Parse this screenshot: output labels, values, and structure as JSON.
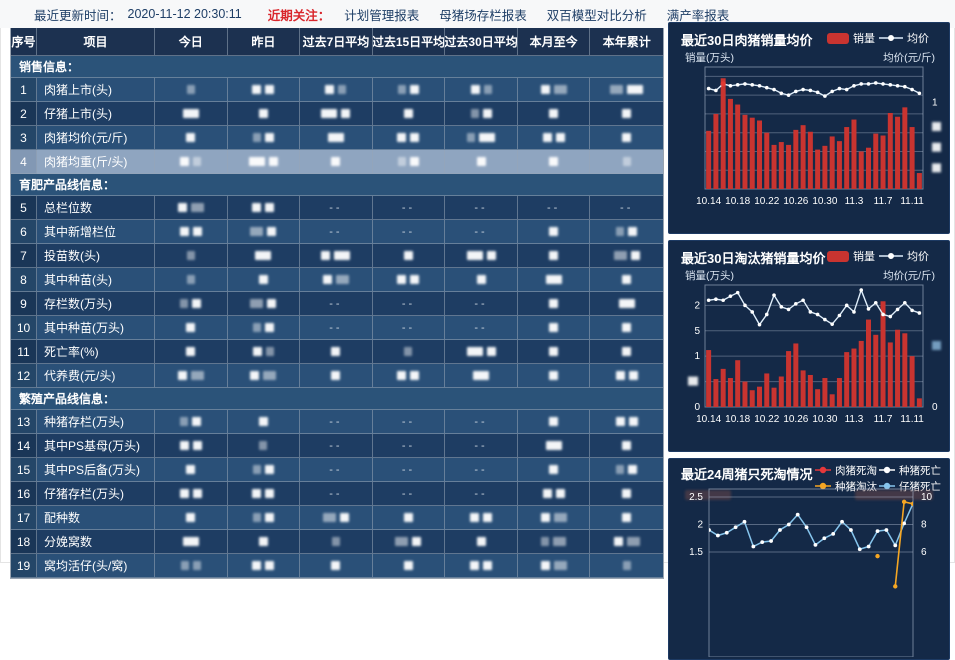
{
  "topbar": {
    "updated_label": "最近更新时间：",
    "updated_value": "2020-11-12 20:30:11",
    "focus_label": "近期关注：",
    "links": [
      "计划管理报表",
      "母猪场存栏报表",
      "双百模型对比分析",
      "满产率报表"
    ]
  },
  "table": {
    "headers": [
      "序号",
      "项目",
      "今日",
      "昨日",
      "过去7日平均",
      "过去15日平均",
      "过去30日平均",
      "本月至今",
      "本年累计"
    ],
    "masked_note": "--",
    "rows": [
      {
        "section": "销售信息："
      },
      {
        "no": "1",
        "name": "肉猪上市(头)",
        "cells": [
          "g",
          "ss",
          "sg",
          "gs",
          "sg",
          "sG",
          "Gw"
        ]
      },
      {
        "no": "2",
        "name": "仔猪上市(头)",
        "cells": [
          "w",
          "s",
          "ws",
          "s",
          "gs",
          "s",
          "s"
        ]
      },
      {
        "no": "3",
        "name": "肉猪均价(元/斤)",
        "cells": [
          "s",
          "gs",
          "w",
          "ss",
          "gw",
          "ss",
          "s"
        ]
      },
      {
        "no": "4",
        "name": "肉猪均重(斤/头)",
        "selected": true,
        "cells": [
          "sg",
          "ws",
          "s",
          "gs",
          "s",
          "s",
          "g"
        ]
      },
      {
        "section": "育肥产品线信息："
      },
      {
        "no": "5",
        "name": "总栏位数",
        "cells": [
          "sG",
          "ss",
          "--",
          "--",
          "--",
          "--",
          "--"
        ]
      },
      {
        "no": "6",
        "name": "其中新增栏位",
        "cells": [
          "ss",
          "Gs",
          "--",
          "--",
          "--",
          "s",
          "gs"
        ]
      },
      {
        "no": "7",
        "name": "投苗数(头)",
        "cells": [
          "g",
          "w",
          "sw",
          "s",
          "ws",
          "s",
          "Gs"
        ]
      },
      {
        "no": "8",
        "name": "其中种苗(头)",
        "cells": [
          "g",
          "s",
          "sG",
          "ss",
          "s",
          "w",
          "s"
        ]
      },
      {
        "no": "9",
        "name": "存栏数(万头)",
        "cells": [
          "gs",
          "Gs",
          "--",
          "--",
          "--",
          "s",
          "w"
        ]
      },
      {
        "no": "10",
        "name": "其中种苗(万头)",
        "cells": [
          "s",
          "gs",
          "--",
          "--",
          "--",
          "s",
          "s"
        ]
      },
      {
        "no": "11",
        "name": "死亡率(%)",
        "cells": [
          "s",
          "sg",
          "s",
          "g",
          "ws",
          "s",
          "s"
        ]
      },
      {
        "no": "12",
        "name": "代养费(元/头)",
        "cells": [
          "sG",
          "sG",
          "s",
          "ss",
          "w",
          "s",
          "ss"
        ]
      },
      {
        "section": "繁殖产品线信息："
      },
      {
        "no": "13",
        "name": "种猪存栏(万头)",
        "cells": [
          "gs",
          "s",
          "--",
          "--",
          "--",
          "s",
          "ss"
        ]
      },
      {
        "no": "14",
        "name": "其中PS基母(万头)",
        "cells": [
          "ss",
          "g",
          "--",
          "--",
          "--",
          "w",
          "s"
        ]
      },
      {
        "no": "15",
        "name": "其中PS后备(万头)",
        "cells": [
          "s",
          "gs",
          "--",
          "--",
          "--",
          "s",
          "gs"
        ]
      },
      {
        "no": "16",
        "name": "仔猪存栏(万头)",
        "cells": [
          "ss",
          "ss",
          "--",
          "--",
          "--",
          "ss",
          "s"
        ]
      },
      {
        "no": "17",
        "name": "配种数",
        "cells": [
          "s",
          "gs",
          "Gs",
          "s",
          "ss",
          "sG",
          "s"
        ]
      },
      {
        "no": "18",
        "name": "分娩窝数",
        "cells": [
          "w",
          "s",
          "g",
          "Gs",
          "s",
          "gG",
          "sG"
        ]
      },
      {
        "no": "19",
        "name": "窝均活仔(头/窝)",
        "cells": [
          "gg",
          "ss",
          "s",
          "s",
          "ss",
          "sG",
          "g"
        ]
      }
    ]
  },
  "chart_data": [
    {
      "type": "bar",
      "title": "最近30日肉猪销量均价",
      "legend": [
        {
          "label": "销量",
          "color": "#c93430",
          "shape": "bar"
        },
        {
          "label": "均价",
          "color": "#dfeefb",
          "shape": "line"
        }
      ],
      "ylabel_left": "销量(万头)",
      "ylabel_right": "均价(元/斤)",
      "x_labels": [
        "10.14",
        "10.18",
        "10.22",
        "10.26",
        "10.30",
        "11.3",
        "11.7",
        "11.11"
      ],
      "x_label_indices": [
        0,
        4,
        8,
        12,
        16,
        20,
        24,
        28
      ],
      "ylim": [
        0,
        1.3
      ],
      "grid_values": [
        0.2,
        0.4,
        0.6,
        0.8,
        1.0,
        1.2
      ],
      "left_axis_ticks": [],
      "right_axis_ticks": [
        {
          "y": 0.92,
          "text": "1"
        },
        {
          "y": 0.66,
          "masked": true
        },
        {
          "y": 0.44,
          "masked": true
        },
        {
          "y": 0.22,
          "masked": true
        }
      ],
      "series": [
        {
          "name": "销量",
          "type": "bar",
          "values": [
            0.62,
            0.8,
            1.18,
            0.96,
            0.9,
            0.79,
            0.76,
            0.73,
            0.6,
            0.47,
            0.5,
            0.47,
            0.63,
            0.68,
            0.61,
            0.42,
            0.46,
            0.56,
            0.51,
            0.66,
            0.74,
            0.4,
            0.44,
            0.59,
            0.57,
            0.81,
            0.77,
            0.87,
            0.66,
            0.17
          ]
        },
        {
          "name": "均价",
          "type": "line",
          "highlight_index": 2,
          "values": [
            1.07,
            1.05,
            1.12,
            1.1,
            1.11,
            1.12,
            1.11,
            1.1,
            1.08,
            1.06,
            1.02,
            1.0,
            1.04,
            1.06,
            1.05,
            1.03,
            0.99,
            1.04,
            1.07,
            1.06,
            1.1,
            1.12,
            1.12,
            1.13,
            1.12,
            1.11,
            1.1,
            1.09,
            1.06,
            1.02
          ]
        }
      ]
    },
    {
      "type": "bar",
      "title": "最近30日淘汰猪销量均价",
      "legend": [
        {
          "label": "销量",
          "color": "#c93430",
          "shape": "bar"
        },
        {
          "label": "均价",
          "color": "#dfeefb",
          "shape": "line"
        }
      ],
      "ylabel_left": "销量(万头)",
      "ylabel_right": "均价(元/斤)",
      "x_labels": [
        "10.14",
        "10.18",
        "10.22",
        "10.26",
        "10.30",
        "11.3",
        "11.7",
        "11.11"
      ],
      "x_label_indices": [
        0,
        4,
        8,
        12,
        16,
        20,
        24,
        28
      ],
      "ylim": [
        0,
        2.4
      ],
      "grid_values": [
        0.5,
        1.0,
        1.5,
        2.0
      ],
      "left_axis_ticks": [
        {
          "y": 2.0,
          "text": "2"
        },
        {
          "y": 1.5,
          "text": "5"
        },
        {
          "y": 1.0,
          "text": "1"
        },
        {
          "y": 0.5,
          "masked": true
        },
        {
          "y": 0.0,
          "text": "0"
        }
      ],
      "right_axis_ticks": [
        {
          "y": 1.2,
          "masked": true,
          "color": "#7fa9cc"
        },
        {
          "y": 0.0,
          "text": "0"
        }
      ],
      "series": [
        {
          "name": "销量",
          "type": "bar",
          "values": [
            1.12,
            0.55,
            0.75,
            0.57,
            0.92,
            0.5,
            0.33,
            0.4,
            0.66,
            0.38,
            0.6,
            1.1,
            1.25,
            0.72,
            0.63,
            0.35,
            0.57,
            0.25,
            0.57,
            1.08,
            1.15,
            1.3,
            1.72,
            1.42,
            2.08,
            1.27,
            1.52,
            1.45,
            1.0,
            0.17
          ]
        },
        {
          "name": "均价",
          "type": "line",
          "values": [
            2.1,
            2.12,
            2.1,
            2.18,
            2.25,
            2.0,
            1.87,
            1.62,
            1.82,
            2.2,
            1.97,
            1.92,
            2.03,
            2.1,
            1.87,
            1.82,
            1.72,
            1.63,
            1.8,
            2.0,
            1.87,
            2.3,
            1.93,
            2.05,
            1.82,
            1.78,
            1.92,
            2.05,
            1.9,
            1.85
          ]
        }
      ]
    },
    {
      "type": "line",
      "title": "最近24周猪只死淘情况",
      "legend": [
        {
          "label": "肉猪死淘",
          "color": "#e5383b"
        },
        {
          "label": "种猪死亡",
          "color": "#ffffff"
        },
        {
          "label": "种猪淘汰",
          "color": "#f5a623"
        },
        {
          "label": "仔猪死亡",
          "color": "#86c5ed"
        }
      ],
      "ylabel_left_masked": true,
      "ylabel_right_masked": true,
      "left_tick_labels": [
        "2.5",
        "2",
        "1.5"
      ],
      "left_tick_values": [
        2.5,
        2.0,
        1.5
      ],
      "right_tick_labels": [
        "10",
        "8",
        "6"
      ],
      "right_axis_ratio": 4,
      "series": [
        {
          "name": "肉猪死淘",
          "color": "#e5383b",
          "axis": "left",
          "values": null
        },
        {
          "name": "种猪死亡",
          "color": "#ffffff",
          "axis": "left",
          "values": null
        },
        {
          "name": "种猪淘汰",
          "color": "#f5a623",
          "axis": "right",
          "values": [
            null,
            null,
            null,
            null,
            null,
            null,
            null,
            null,
            null,
            null,
            null,
            null,
            null,
            null,
            null,
            null,
            null,
            null,
            null,
            5.7,
            null,
            3.5,
            9.65,
            9.5
          ]
        },
        {
          "name": "仔猪死亡",
          "color": "#86c5ed",
          "axis": "left",
          "values": [
            1.9,
            1.8,
            1.85,
            1.95,
            2.05,
            1.6,
            1.68,
            1.7,
            1.9,
            2.0,
            2.18,
            1.95,
            1.63,
            1.75,
            1.83,
            2.05,
            1.9,
            1.55,
            1.6,
            1.88,
            1.9,
            1.62,
            2.02,
            2.38
          ]
        }
      ]
    }
  ],
  "colors": {
    "accent_red": "#d9262c",
    "bar_red": "#c93430",
    "row_dark": "#1e3d63",
    "row_light": "#2a5078",
    "row_selected": "#8fa5c0",
    "header_bg": "#1c3150",
    "panel_bg": "#142947"
  }
}
